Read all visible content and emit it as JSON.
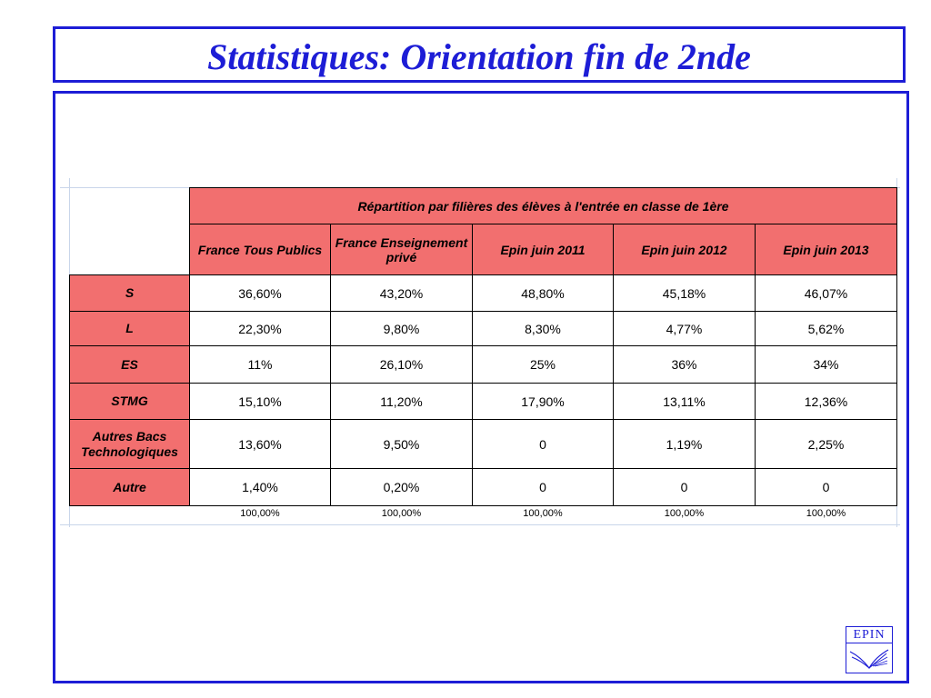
{
  "title": "Statistiques: Orientation fin de 2nde",
  "table": {
    "caption": "Répartition par filières des élèves à l'entrée en classe de 1ère",
    "columns": [
      "France Tous Publics",
      "France Enseignement privé",
      "Epin juin 2011",
      "Epin juin 2012",
      "Epin juin 2013"
    ],
    "rows": [
      {
        "label": "S",
        "values": [
          "36,60%",
          "43,20%",
          "48,80%",
          "45,18%",
          "46,07%"
        ]
      },
      {
        "label": "L",
        "values": [
          "22,30%",
          "9,80%",
          "8,30%",
          "4,77%",
          "5,62%"
        ]
      },
      {
        "label": "ES",
        "values": [
          "11%",
          "26,10%",
          "25%",
          "36%",
          "34%"
        ]
      },
      {
        "label": "STMG",
        "values": [
          "15,10%",
          "11,20%",
          "17,90%",
          "13,11%",
          "12,36%"
        ]
      },
      {
        "label": "Autres Bacs Technologiques",
        "values": [
          "13,60%",
          "9,50%",
          "0",
          "1,19%",
          "2,25%"
        ]
      },
      {
        "label": "Autre",
        "values": [
          "1,40%",
          "0,20%",
          "0",
          "0",
          "0"
        ]
      }
    ],
    "totals": [
      "100,00%",
      "100,00%",
      "100,00%",
      "100,00%",
      "100,00%"
    ]
  },
  "logo": {
    "text": "EPIN"
  },
  "colors": {
    "accent": "#1d1dd6",
    "header_fill": "#f26f6f"
  }
}
